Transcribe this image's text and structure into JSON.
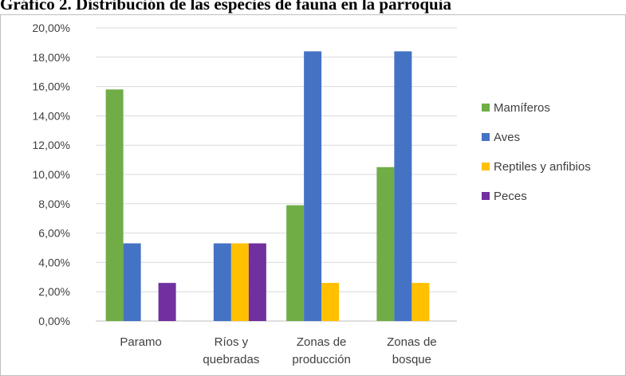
{
  "title": "Gráfico 2. Distribución de las especies de fauna en la parroquia",
  "chart_data": {
    "type": "bar",
    "title": "Gráfico 2. Distribución de las especies de fauna en la parroquia",
    "xlabel": "",
    "ylabel": "",
    "categories": [
      [
        "Paramo"
      ],
      [
        "Ríos y",
        "quebradas"
      ],
      [
        "Zonas de",
        "producción"
      ],
      [
        "Zonas de",
        "bosque"
      ]
    ],
    "series": [
      {
        "name": "Mamíferos",
        "color": "#70ad47",
        "values": [
          15.8,
          0,
          7.9,
          10.5
        ]
      },
      {
        "name": "Aves",
        "color": "#4472c4",
        "values": [
          5.3,
          5.3,
          18.4,
          18.4
        ]
      },
      {
        "name": "Reptiles y anfibios",
        "color": "#ffc000",
        "values": [
          0,
          5.3,
          2.6,
          2.6
        ]
      },
      {
        "name": "Peces",
        "color": "#7030a0",
        "values": [
          2.6,
          5.3,
          0,
          0
        ]
      }
    ],
    "ylim": [
      0,
      20
    ],
    "yticks": [
      "0,00%",
      "2,00%",
      "4,00%",
      "6,00%",
      "8,00%",
      "10,00%",
      "12,00%",
      "14,00%",
      "16,00%",
      "18,00%",
      "20,00%"
    ],
    "grid": true,
    "legend_position": "right"
  }
}
